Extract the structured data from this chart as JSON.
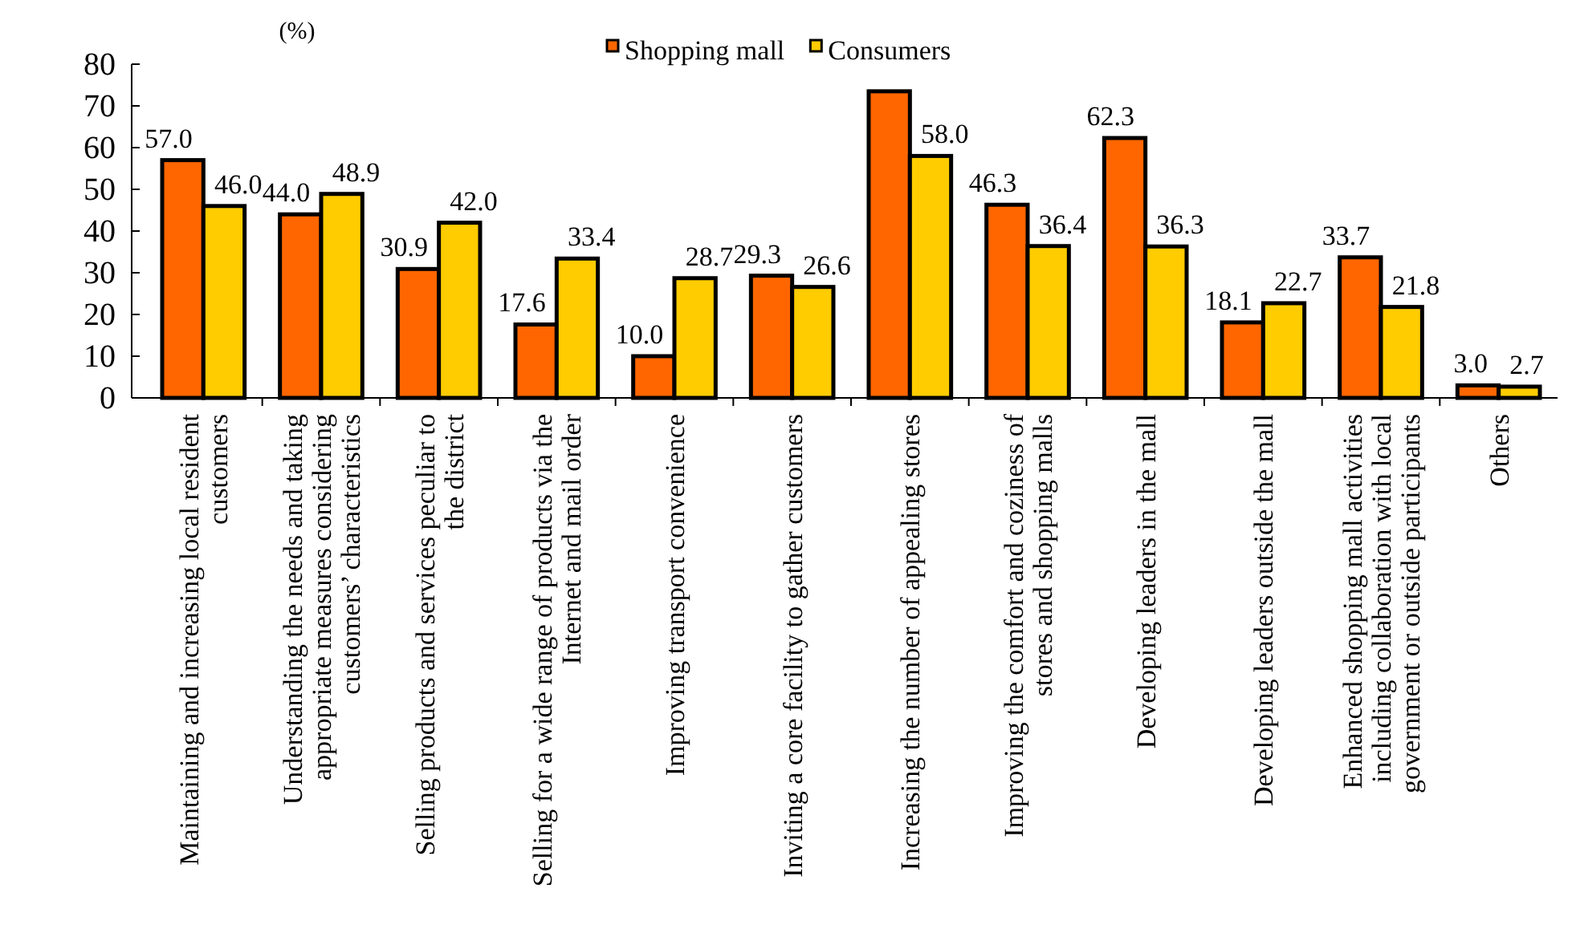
{
  "chart_data": {
    "type": "bar",
    "ylabel": "(%)",
    "categories": [
      "Maintaining and increasing local resident customers",
      "Understanding the needs and taking appropriate measures considering customers’ characteristics",
      "Selling products and services peculiar to the district",
      "Selling for a wide range of products via the Internet and mail order",
      "Improving transport convenience",
      "Inviting a core facility to gather customers",
      "Increasing the number of appealing stores",
      "Improving the comfort and coziness of stores and shopping malls",
      "Developing leaders in the mall",
      "Developing leaders outside the mall",
      "Enhanced shopping mall activities including collaboration with local government or outside participants",
      "Others"
    ],
    "series": [
      {
        "name": "Shopping mall",
        "color": "#ff6600",
        "values": [
          57.0,
          44.0,
          30.9,
          17.6,
          10.0,
          29.3,
          73.5,
          46.3,
          62.3,
          18.1,
          33.7,
          3.0
        ],
        "value_labels": [
          "57.0",
          "44.0",
          "30.9",
          "17.6",
          "10.0",
          "29.3",
          null,
          "46.3",
          "62.3",
          "18.1",
          "33.7",
          "3.0"
        ]
      },
      {
        "name": "Consumers",
        "color": "#ffcc00",
        "values": [
          46.0,
          48.9,
          42.0,
          33.4,
          28.7,
          26.6,
          58.0,
          36.4,
          36.3,
          22.7,
          21.8,
          2.7
        ],
        "value_labels": [
          "46.0",
          "48.9",
          "42.0",
          "33.4",
          "28.7",
          "26.6",
          "58.0",
          "36.4",
          "36.3",
          "22.7",
          "21.8",
          "2.7"
        ]
      }
    ],
    "ylim": [
      0,
      80
    ],
    "yticks": [
      0,
      10,
      20,
      30,
      40,
      50,
      60,
      70,
      80
    ],
    "grid": false,
    "legend": "top"
  }
}
